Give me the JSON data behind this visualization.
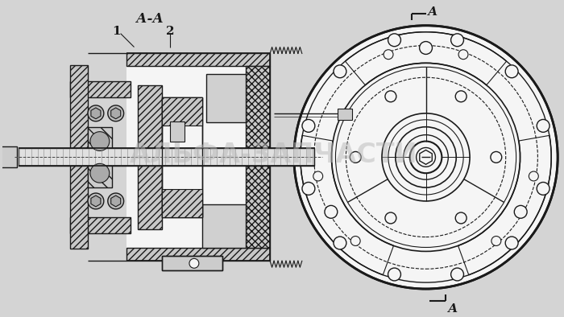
{
  "bg_color": "#d4d4d4",
  "line_color": "#1a1a1a",
  "white": "#f5f5f5",
  "hatch_gray": "#c8c8c8",
  "watermark_text": "АЛЬФА-ЗАПЧАСТИ",
  "watermark_color": "#b8b8b8",
  "watermark_alpha": 0.5,
  "label_AA": "А-А",
  "label_1": "1",
  "label_2": "2",
  "label_A": "А"
}
